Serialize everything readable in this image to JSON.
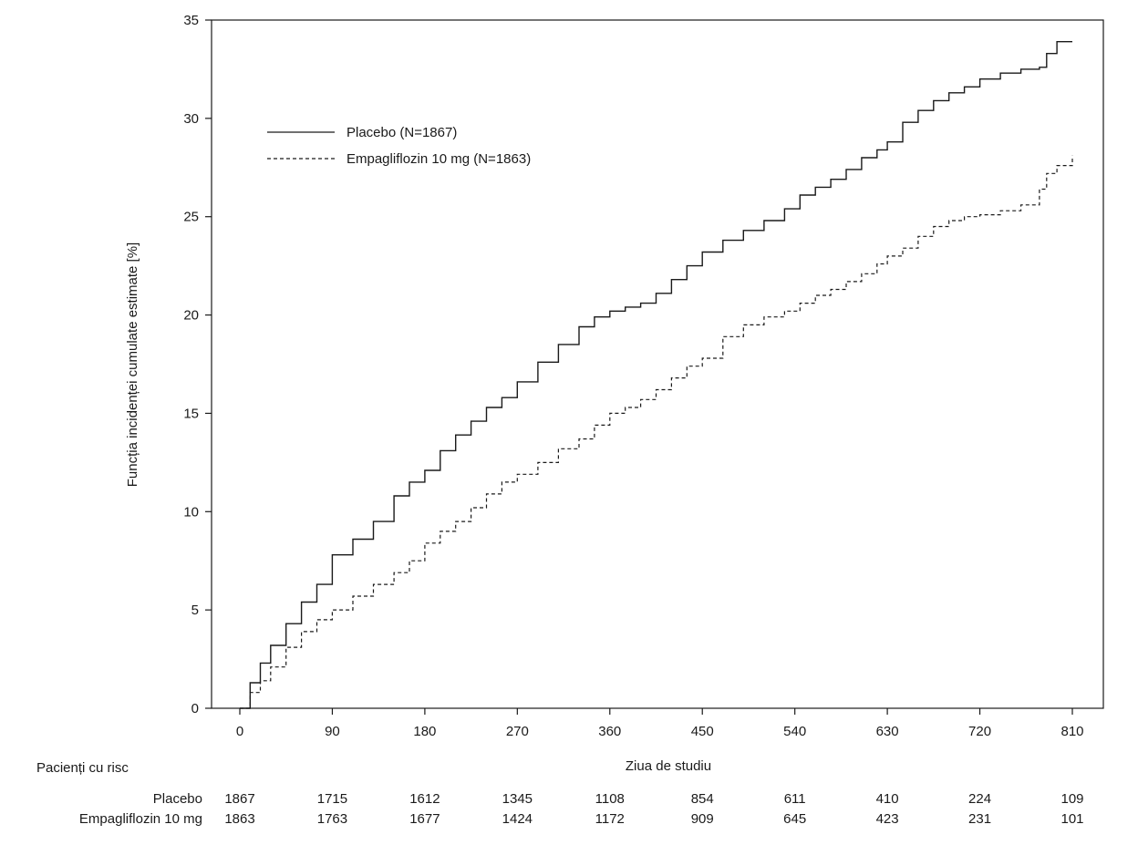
{
  "chart_data": {
    "type": "line",
    "xlabel": "Ziua de studiu",
    "ylabel": "Funcția incidenței cumulate estimate [%]",
    "xlim": [
      -25,
      840
    ],
    "ylim": [
      0,
      35
    ],
    "x_ticks": [
      0,
      90,
      180,
      270,
      360,
      450,
      540,
      630,
      720,
      810
    ],
    "y_ticks": [
      0,
      5,
      10,
      15,
      20,
      25,
      30,
      35
    ],
    "grid": false,
    "legend_position": "top-left",
    "series": [
      {
        "name": "Placebo (N=1867)",
        "line_style": "solid",
        "color": "#1a1a1a",
        "x": [
          0,
          10,
          20,
          30,
          45,
          60,
          75,
          90,
          110,
          130,
          150,
          165,
          180,
          195,
          210,
          225,
          240,
          255,
          270,
          290,
          310,
          330,
          345,
          360,
          375,
          390,
          405,
          420,
          435,
          450,
          470,
          490,
          510,
          530,
          545,
          560,
          575,
          590,
          605,
          620,
          630,
          645,
          660,
          675,
          690,
          705,
          720,
          740,
          760,
          778,
          785,
          795,
          810
        ],
        "y": [
          0,
          1.3,
          2.3,
          3.2,
          4.3,
          5.4,
          6.3,
          7.8,
          8.6,
          9.5,
          10.8,
          11.5,
          12.1,
          13.1,
          13.9,
          14.6,
          15.3,
          15.8,
          16.6,
          17.6,
          18.5,
          19.4,
          19.9,
          20.2,
          20.4,
          20.6,
          21.1,
          21.8,
          22.5,
          23.2,
          23.8,
          24.3,
          24.8,
          25.4,
          26.1,
          26.5,
          26.9,
          27.4,
          28.0,
          28.4,
          28.8,
          29.8,
          30.4,
          30.9,
          31.3,
          31.6,
          32.0,
          32.3,
          32.5,
          32.6,
          33.3,
          33.9,
          33.9
        ]
      },
      {
        "name": "Empagliflozin 10 mg (N=1863)",
        "line_style": "dashed",
        "color": "#1a1a1a",
        "x": [
          0,
          10,
          20,
          30,
          45,
          60,
          75,
          90,
          110,
          130,
          150,
          165,
          180,
          195,
          210,
          225,
          240,
          255,
          270,
          290,
          310,
          330,
          345,
          360,
          375,
          390,
          405,
          420,
          435,
          450,
          470,
          490,
          510,
          530,
          545,
          560,
          575,
          590,
          605,
          620,
          630,
          645,
          660,
          675,
          690,
          705,
          720,
          740,
          760,
          778,
          785,
          795,
          810
        ],
        "y": [
          0,
          0.8,
          1.4,
          2.1,
          3.1,
          3.9,
          4.5,
          5.0,
          5.7,
          6.3,
          6.9,
          7.5,
          8.4,
          9.0,
          9.5,
          10.2,
          10.9,
          11.5,
          11.9,
          12.5,
          13.2,
          13.7,
          14.4,
          15.0,
          15.3,
          15.7,
          16.2,
          16.8,
          17.4,
          17.8,
          18.9,
          19.5,
          19.9,
          20.2,
          20.6,
          21.0,
          21.3,
          21.7,
          22.1,
          22.6,
          23.0,
          23.4,
          24.0,
          24.5,
          24.8,
          25.0,
          25.1,
          25.3,
          25.6,
          26.4,
          27.2,
          27.6,
          28.1
        ]
      }
    ],
    "risk_table": {
      "title": "Pacienți cu risc",
      "x": [
        0,
        90,
        180,
        270,
        360,
        450,
        540,
        630,
        720,
        810
      ],
      "rows": [
        {
          "label": "Placebo",
          "values": [
            "1867",
            "1715",
            "1612",
            "1345",
            "1108",
            "854",
            "611",
            "410",
            "224",
            "109"
          ]
        },
        {
          "label": "Empagliflozin 10 mg",
          "values": [
            "1863",
            "1763",
            "1677",
            "1424",
            "1172",
            "909",
            "645",
            "423",
            "231",
            "101"
          ]
        }
      ]
    }
  }
}
